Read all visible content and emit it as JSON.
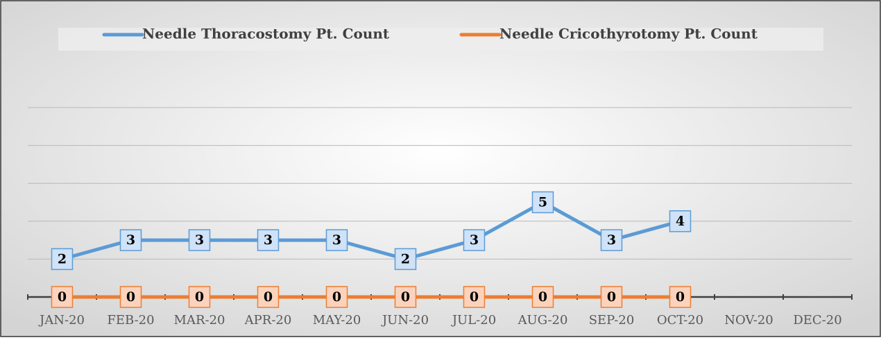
{
  "chart_data": {
    "type": "line",
    "categories": [
      "JAN-20",
      "FEB-20",
      "MAR-20",
      "APR-20",
      "MAY-20",
      "JUN-20",
      "JUL-20",
      "AUG-20",
      "SEP-20",
      "OCT-20",
      "NOV-20",
      "DEC-20"
    ],
    "series": [
      {
        "name": "Needle Thoracostomy Pt. Count",
        "color": "#5b9bd5",
        "label_fill": "#cfe2f7",
        "values": [
          2,
          3,
          3,
          3,
          3,
          2,
          3,
          5,
          3,
          4,
          null,
          null
        ]
      },
      {
        "name": "Needle Cricothyrotomy Pt. Count",
        "color": "#ed7d31",
        "label_fill": "#fbd3bd",
        "values": [
          0,
          0,
          0,
          0,
          0,
          0,
          0,
          0,
          0,
          0,
          null,
          null
        ]
      }
    ],
    "ylim": [
      0,
      10
    ],
    "yticks": [
      0,
      2,
      4,
      6,
      8,
      10
    ],
    "grid": true,
    "legend": "top"
  }
}
